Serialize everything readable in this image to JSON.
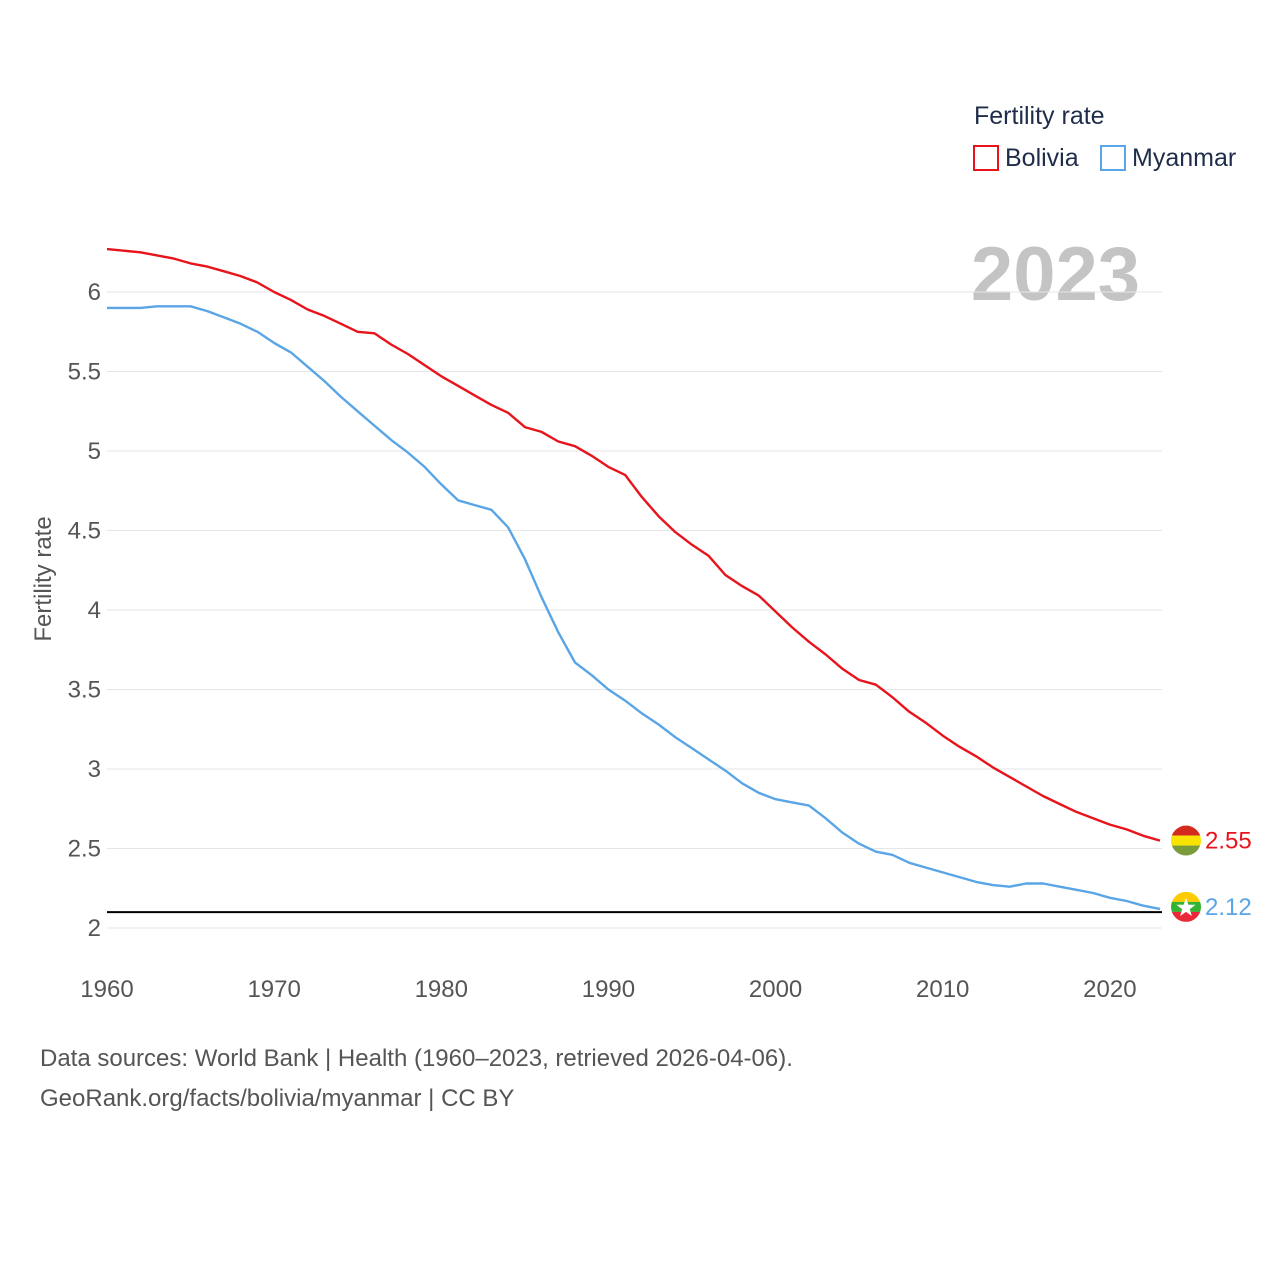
{
  "colors": {
    "bolivia": "#e8141c",
    "myanmar": "#5aa5e6",
    "grid": "#e6e6e6",
    "reference": "#000000",
    "year_stamp": "#c4c4c4"
  },
  "legend": {
    "title": "Fertility rate",
    "items": [
      "Bolivia",
      "Myanmar"
    ]
  },
  "year_stamp": "2023",
  "end_labels": {
    "bolivia": "2.55",
    "myanmar": "2.12"
  },
  "source": {
    "line1": "Data sources: World Bank | Health (1960–2023, retrieved 2026-04-06).",
    "line2": "GeoRank.org/facts/bolivia/myanmar | CC BY"
  },
  "chart_data": {
    "type": "line",
    "title": "",
    "xlabel": "",
    "ylabel": "Fertility rate",
    "xlim": [
      1960,
      2023
    ],
    "ylim": [
      2,
      6.2
    ],
    "x_ticks": [
      1960,
      1970,
      1980,
      1990,
      2000,
      2010,
      2020
    ],
    "y_ticks": [
      2,
      2.5,
      3,
      3.5,
      4,
      4.5,
      5,
      5.5,
      6
    ],
    "y_tick_labels": [
      "2",
      "2.5",
      "3",
      "3.5",
      "4",
      "4.5",
      "5",
      "5.5",
      "6"
    ],
    "reference_line": 2.1,
    "legend_position": "top-right",
    "x": [
      1960,
      1961,
      1962,
      1963,
      1964,
      1965,
      1966,
      1967,
      1968,
      1969,
      1970,
      1971,
      1972,
      1973,
      1974,
      1975,
      1976,
      1977,
      1978,
      1979,
      1980,
      1981,
      1982,
      1983,
      1984,
      1985,
      1986,
      1987,
      1988,
      1989,
      1990,
      1991,
      1992,
      1993,
      1994,
      1995,
      1996,
      1997,
      1998,
      1999,
      2000,
      2001,
      2002,
      2003,
      2004,
      2005,
      2006,
      2007,
      2008,
      2009,
      2010,
      2011,
      2012,
      2013,
      2014,
      2015,
      2016,
      2017,
      2018,
      2019,
      2020,
      2021,
      2022,
      2023
    ],
    "series": [
      {
        "name": "Bolivia",
        "values": [
          6.27,
          6.26,
          6.25,
          6.23,
          6.21,
          6.18,
          6.16,
          6.13,
          6.1,
          6.06,
          6.0,
          5.95,
          5.89,
          5.85,
          5.8,
          5.75,
          5.74,
          5.67,
          5.61,
          5.54,
          5.47,
          5.41,
          5.35,
          5.29,
          5.24,
          5.15,
          5.12,
          5.06,
          5.03,
          4.97,
          4.9,
          4.85,
          4.71,
          4.59,
          4.49,
          4.41,
          4.34,
          4.22,
          4.15,
          4.09,
          3.99,
          3.89,
          3.8,
          3.72,
          3.63,
          3.56,
          3.53,
          3.45,
          3.36,
          3.29,
          3.21,
          3.14,
          3.08,
          3.01,
          2.95,
          2.89,
          2.83,
          2.78,
          2.73,
          2.69,
          2.65,
          2.62,
          2.58,
          2.55
        ]
      },
      {
        "name": "Myanmar",
        "values": [
          5.9,
          5.9,
          5.9,
          5.91,
          5.91,
          5.91,
          5.88,
          5.84,
          5.8,
          5.75,
          5.68,
          5.62,
          5.53,
          5.44,
          5.34,
          5.25,
          5.16,
          5.07,
          4.99,
          4.9,
          4.79,
          4.69,
          4.66,
          4.63,
          4.52,
          4.32,
          4.08,
          3.86,
          3.67,
          3.59,
          3.5,
          3.43,
          3.35,
          3.28,
          3.2,
          3.13,
          3.06,
          2.99,
          2.91,
          2.85,
          2.81,
          2.79,
          2.77,
          2.69,
          2.6,
          2.53,
          2.48,
          2.46,
          2.41,
          2.38,
          2.35,
          2.32,
          2.29,
          2.27,
          2.26,
          2.28,
          2.28,
          2.26,
          2.24,
          2.22,
          2.19,
          2.17,
          2.14,
          2.12
        ]
      }
    ]
  }
}
